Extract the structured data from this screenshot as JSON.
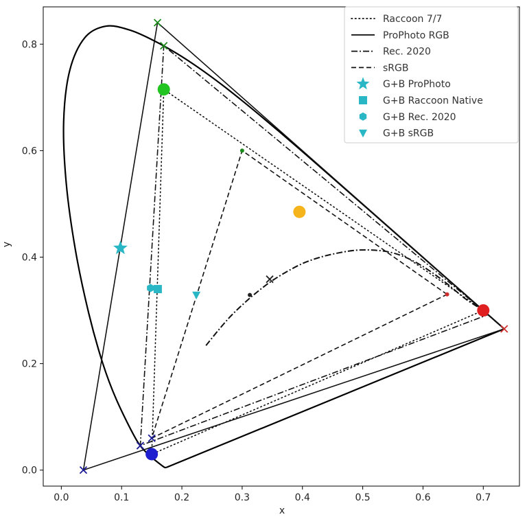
{
  "chart_data": {
    "type": "scatter",
    "title": "",
    "xlabel": "x",
    "ylabel": "y",
    "xlim": [
      -0.03,
      0.76
    ],
    "ylim": [
      -0.03,
      0.87
    ],
    "x_ticks": [
      "0.0",
      "0.1",
      "0.2",
      "0.3",
      "0.4",
      "0.5",
      "0.6",
      "0.7"
    ],
    "y_ticks": [
      "0.0",
      "0.2",
      "0.4",
      "0.6",
      "0.8"
    ],
    "grid": false,
    "legend_position": "top-right",
    "legend": [
      {
        "label": "Raccoon 7/7",
        "kind": "line",
        "dash": "dotted"
      },
      {
        "label": "ProPhoto RGB",
        "kind": "line",
        "dash": "solid"
      },
      {
        "label": "Rec. 2020",
        "kind": "line",
        "dash": "dashdot"
      },
      {
        "label": "sRGB",
        "kind": "line",
        "dash": "dashed"
      },
      {
        "label": "G+B ProPhoto",
        "kind": "marker",
        "marker": "star",
        "color": "#2ab7c5"
      },
      {
        "label": "G+B Raccoon Native",
        "kind": "marker",
        "marker": "square",
        "color": "#2ab7c5"
      },
      {
        "label": "G+B Rec. 2020",
        "kind": "marker",
        "marker": "hexagon",
        "color": "#2ab7c5"
      },
      {
        "label": "G+B sRGB",
        "kind": "marker",
        "marker": "triangle-down",
        "color": "#2ab7c5"
      }
    ],
    "spectral_locus": {
      "x": [
        0.1741,
        0.1738,
        0.1714,
        0.1666,
        0.1566,
        0.144,
        0.1241,
        0.0913,
        0.0687,
        0.0454,
        0.0235,
        0.0082,
        0.0039,
        0.0139,
        0.0389,
        0.0743,
        0.1142,
        0.1547,
        0.1929,
        0.2296,
        0.2658,
        0.3016,
        0.3373,
        0.3731,
        0.4087,
        0.4441,
        0.4788,
        0.5125,
        0.5448,
        0.5752,
        0.6029,
        0.627,
        0.6482,
        0.6658,
        0.6801,
        0.6915,
        0.7006,
        0.7079,
        0.714,
        0.719,
        0.7347,
        0.1741
      ],
      "y": [
        0.005,
        0.005,
        0.0051,
        0.0089,
        0.0177,
        0.0297,
        0.0578,
        0.1327,
        0.2007,
        0.295,
        0.4127,
        0.5384,
        0.6548,
        0.7502,
        0.812,
        0.8338,
        0.8262,
        0.8059,
        0.7816,
        0.7543,
        0.7243,
        0.6923,
        0.6589,
        0.6245,
        0.5896,
        0.5547,
        0.5202,
        0.4866,
        0.4544,
        0.4242,
        0.3965,
        0.3725,
        0.3514,
        0.334,
        0.3197,
        0.3083,
        0.2993,
        0.292,
        0.2859,
        0.2809,
        0.2653,
        0.005
      ]
    },
    "gamuts": [
      {
        "name": "Raccoon 7/7",
        "dash": "dotted",
        "x": [
          0.7,
          0.17,
          0.15,
          0.7
        ],
        "y": [
          0.3,
          0.715,
          0.03,
          0.3
        ]
      },
      {
        "name": "ProPhoto RGB",
        "dash": "solid",
        "x": [
          0.7347,
          0.1596,
          0.0366,
          0.7347
        ],
        "y": [
          0.2653,
          0.8404,
          0.0001,
          0.2653
        ]
      },
      {
        "name": "Rec. 2020",
        "dash": "dashdot",
        "x": [
          0.708,
          0.17,
          0.131,
          0.708
        ],
        "y": [
          0.292,
          0.797,
          0.046,
          0.292
        ]
      },
      {
        "name": "sRGB",
        "dash": "dashed",
        "x": [
          0.64,
          0.3,
          0.15,
          0.64
        ],
        "y": [
          0.33,
          0.6,
          0.06,
          0.33
        ]
      }
    ],
    "planckian_locus": {
      "x": [
        0.24,
        0.26,
        0.28,
        0.3,
        0.32,
        0.345,
        0.37,
        0.4,
        0.43,
        0.46,
        0.49,
        0.52,
        0.55,
        0.58,
        0.61,
        0.64,
        0.67,
        0.7
      ],
      "y": [
        0.234,
        0.262,
        0.288,
        0.31,
        0.33,
        0.352,
        0.37,
        0.388,
        0.4,
        0.408,
        0.413,
        0.413,
        0.408,
        0.395,
        0.375,
        0.35,
        0.322,
        0.3
      ]
    },
    "markers": [
      {
        "role": "primary-vertex",
        "shape": "x",
        "color": "#1a8a1a",
        "x": 0.1596,
        "y": 0.8404
      },
      {
        "role": "primary-vertex",
        "shape": "x",
        "color": "#d03030",
        "x": 0.7347,
        "y": 0.2653
      },
      {
        "role": "primary-vertex",
        "shape": "x",
        "color": "#1a1a99",
        "x": 0.0366,
        "y": 0.0001
      },
      {
        "role": "primary-vertex",
        "shape": "x",
        "color": "#1a1a99",
        "x": 0.131,
        "y": 0.046
      },
      {
        "role": "primary-vertex",
        "shape": "x",
        "color": "#1a8a1a",
        "x": 0.17,
        "y": 0.797
      },
      {
        "role": "primary-vertex",
        "shape": "x",
        "color": "#1a1a99",
        "x": 0.15,
        "y": 0.06
      },
      {
        "role": "primary-dot",
        "shape": "dot",
        "color": "#22c422",
        "size": 9,
        "x": 0.17,
        "y": 0.715
      },
      {
        "role": "primary-dot",
        "shape": "dot",
        "color": "#e02020",
        "size": 9,
        "x": 0.7,
        "y": 0.3
      },
      {
        "role": "primary-dot",
        "shape": "dot",
        "color": "#1f1fd0",
        "size": 9,
        "x": 0.15,
        "y": 0.03
      },
      {
        "role": "primary-dot",
        "shape": "dot",
        "color": "#1a8a1a",
        "size": 3,
        "x": 0.3,
        "y": 0.6
      },
      {
        "role": "primary-dot",
        "shape": "dot",
        "color": "#d03030",
        "size": 3,
        "x": 0.64,
        "y": 0.33
      },
      {
        "role": "white-point",
        "shape": "x",
        "color": "#222222",
        "x": 0.3457,
        "y": 0.3585
      },
      {
        "role": "white-point",
        "shape": "dot",
        "color": "#222222",
        "size": 3,
        "x": 0.3127,
        "y": 0.329
      },
      {
        "role": "extra-point",
        "shape": "dot",
        "color": "#f5b31c",
        "size": 9,
        "x": 0.395,
        "y": 0.485
      },
      {
        "role": "G+B ProPhoto",
        "shape": "star",
        "color": "#2ab7c5",
        "size": 11,
        "x": 0.098,
        "y": 0.417
      },
      {
        "role": "G+B Raccoon Native",
        "shape": "square",
        "color": "#2ab7c5",
        "size": 6,
        "x": 0.16,
        "y": 0.34
      },
      {
        "role": "G+B Rec. 2020",
        "shape": "hexagon",
        "color": "#2ab7c5",
        "size": 6,
        "x": 0.148,
        "y": 0.342
      },
      {
        "role": "G+B sRGB",
        "shape": "triangle-down",
        "color": "#2ab7c5",
        "size": 6,
        "x": 0.224,
        "y": 0.329
      }
    ]
  }
}
